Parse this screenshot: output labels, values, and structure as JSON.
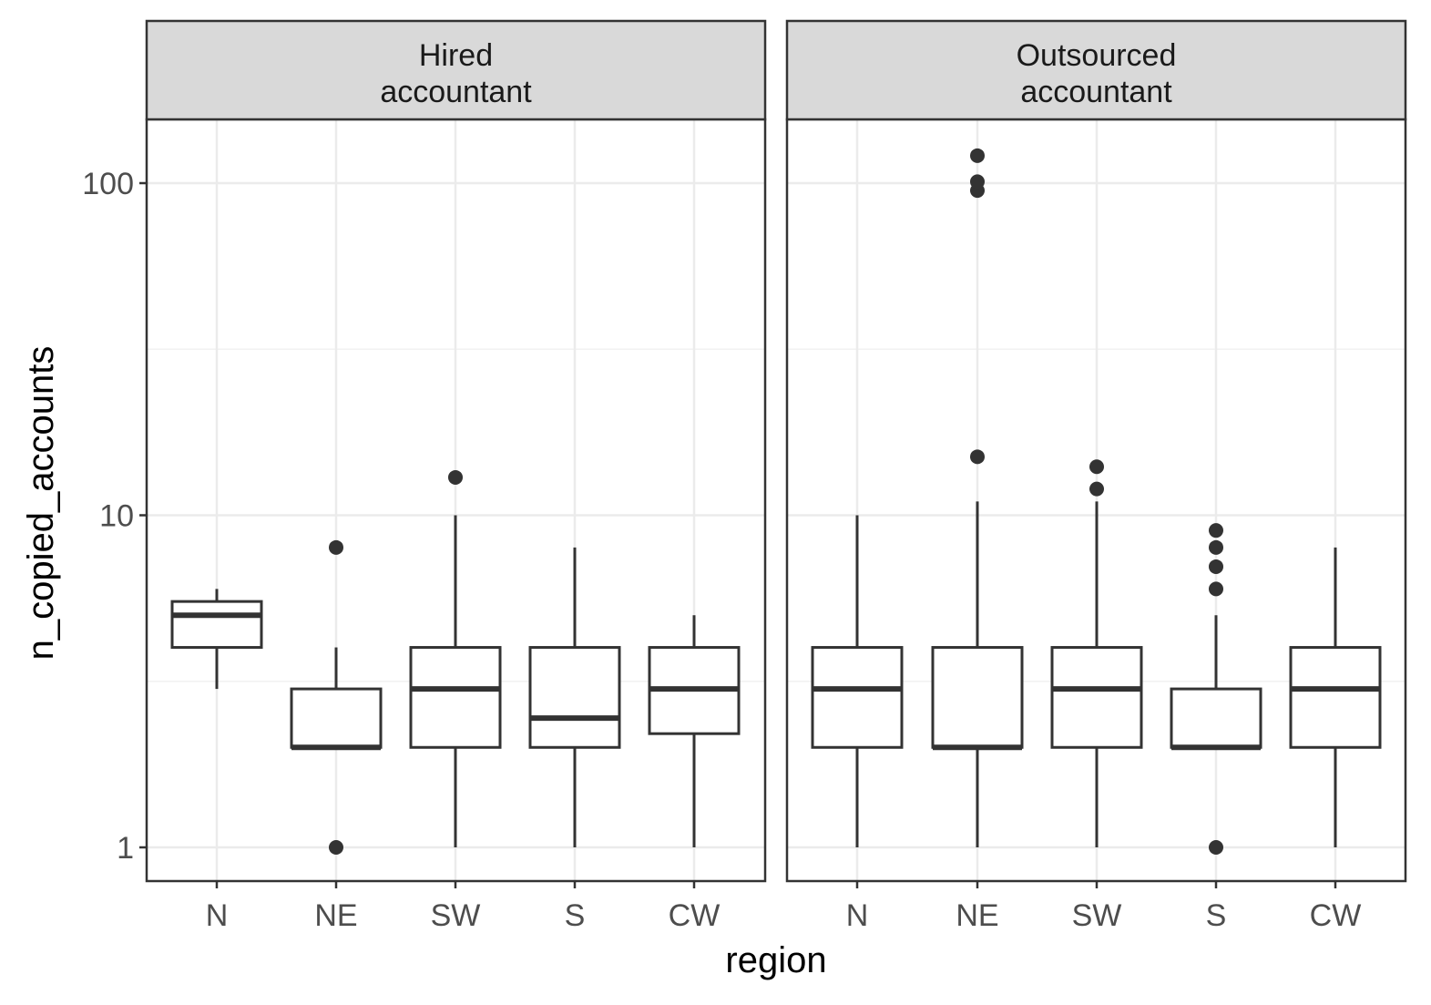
{
  "chart_data": {
    "type": "boxplot",
    "xlabel": "region",
    "ylabel": "n_copied_accounts",
    "y_scale": "log10",
    "ylim": [
      0.75,
      160
    ],
    "y_ticks": [
      1,
      10,
      100
    ],
    "y_tick_labels": [
      "1",
      "10",
      "100"
    ],
    "grid": true,
    "categories": [
      "N",
      "NE",
      "SW",
      "S",
      "CW"
    ],
    "facets": [
      {
        "label_lines": [
          "Hired",
          "accountant"
        ],
        "boxes": [
          {
            "category": "N",
            "lower_whisker": 3,
            "q1": 4,
            "median": 5,
            "q3": 5.5,
            "upper_whisker": 6,
            "outliers": []
          },
          {
            "category": "NE",
            "lower_whisker": 2,
            "q1": 2,
            "median": 2,
            "q3": 3,
            "upper_whisker": 4,
            "outliers": [
              1,
              8
            ]
          },
          {
            "category": "SW",
            "lower_whisker": 1,
            "q1": 2,
            "median": 3,
            "q3": 4,
            "upper_whisker": 10,
            "outliers": [
              13
            ]
          },
          {
            "category": "S",
            "lower_whisker": 1,
            "q1": 2,
            "median": 2.45,
            "q3": 4,
            "upper_whisker": 8,
            "outliers": []
          },
          {
            "category": "CW",
            "lower_whisker": 1,
            "q1": 2.2,
            "median": 3,
            "q3": 4,
            "upper_whisker": 5,
            "outliers": []
          }
        ]
      },
      {
        "label_lines": [
          "Outsourced",
          "accountant"
        ],
        "boxes": [
          {
            "category": "N",
            "lower_whisker": 1,
            "q1": 2,
            "median": 3,
            "q3": 4,
            "upper_whisker": 10,
            "outliers": []
          },
          {
            "category": "NE",
            "lower_whisker": 1,
            "q1": 2,
            "median": 2,
            "q3": 4,
            "upper_whisker": 11,
            "outliers": [
              15,
              95,
              101,
              121
            ]
          },
          {
            "category": "SW",
            "lower_whisker": 1,
            "q1": 2,
            "median": 3,
            "q3": 4,
            "upper_whisker": 11,
            "outliers": [
              12,
              14
            ]
          },
          {
            "category": "S",
            "lower_whisker": 2,
            "q1": 2,
            "median": 2,
            "q3": 3,
            "upper_whisker": 5,
            "outliers": [
              1,
              6,
              7,
              8,
              9
            ]
          },
          {
            "category": "CW",
            "lower_whisker": 1,
            "q1": 2,
            "median": 3,
            "q3": 4,
            "upper_whisker": 8,
            "outliers": []
          }
        ]
      }
    ]
  },
  "colors": {
    "panel_border": "#333333",
    "strip_fill": "#d9d9d9",
    "grid_major": "#ebebeb",
    "grid_minor": "#f2f2f2",
    "box_line": "#333333",
    "outlier": "#333333"
  }
}
